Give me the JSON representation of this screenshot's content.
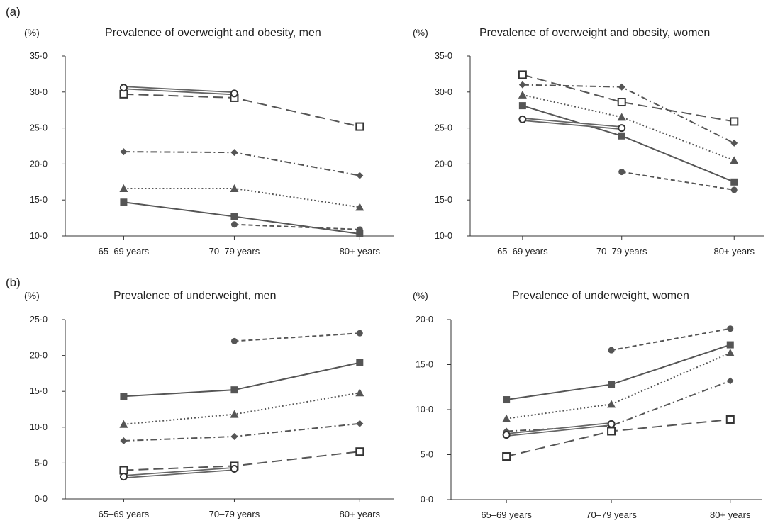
{
  "panel_labels": [
    "(a)",
    "(b)"
  ],
  "chart_data": [
    {
      "type": "line",
      "title": "Prevalence of overweight and obesity, men",
      "ylabel": "(%)",
      "categories": [
        "65–69 years",
        "70–79 years",
        "80+ years"
      ],
      "ylim": [
        10,
        35
      ],
      "yticks": [
        "10·0",
        "15·0",
        "20·0",
        "25·0",
        "30·0",
        "35·0"
      ],
      "series": [
        {
          "marker": "square-filled",
          "dash": "solid",
          "values": [
            14.7,
            12.7,
            10.3
          ]
        },
        {
          "marker": "triangle",
          "dash": "dotted",
          "values": [
            16.6,
            16.6,
            14.0
          ]
        },
        {
          "marker": "diamond",
          "dash": "dashdot",
          "values": [
            21.7,
            21.6,
            18.4
          ]
        },
        {
          "marker": "square-open",
          "dash": "longdash",
          "values": [
            29.7,
            29.2,
            25.2
          ]
        },
        {
          "marker": "circle-open",
          "dash": "double",
          "values": [
            30.6,
            29.8,
            null
          ]
        },
        {
          "marker": "circle-filled",
          "dash": "shortdash",
          "values": [
            null,
            11.6,
            10.9
          ]
        }
      ]
    },
    {
      "type": "line",
      "title": "Prevalence of overweight and obesity, women",
      "ylabel": "(%)",
      "categories": [
        "65–69 years",
        "70–79 years",
        "80+ years"
      ],
      "ylim": [
        10,
        35
      ],
      "yticks": [
        "10·0",
        "15·0",
        "20·0",
        "25·0",
        "30·0",
        "35·0"
      ],
      "series": [
        {
          "marker": "square-filled",
          "dash": "solid",
          "values": [
            28.1,
            23.9,
            17.5
          ]
        },
        {
          "marker": "triangle",
          "dash": "dotted",
          "values": [
            29.6,
            26.5,
            20.5
          ]
        },
        {
          "marker": "diamond",
          "dash": "dashdot",
          "values": [
            31.0,
            30.7,
            22.9
          ]
        },
        {
          "marker": "square-open",
          "dash": "longdash",
          "values": [
            32.4,
            28.6,
            25.9
          ]
        },
        {
          "marker": "circle-open",
          "dash": "double",
          "values": [
            26.2,
            25.0,
            null
          ]
        },
        {
          "marker": "circle-filled",
          "dash": "shortdash",
          "values": [
            null,
            18.9,
            16.4
          ]
        }
      ]
    },
    {
      "type": "line",
      "title": "Prevalence of underweight, men",
      "ylabel": "(%)",
      "categories": [
        "65–69 years",
        "70–79 years",
        "80+ years"
      ],
      "ylim": [
        0,
        25
      ],
      "yticks": [
        "0·0",
        "5·0",
        "10·0",
        "15·0",
        "20·0",
        "25·0"
      ],
      "series": [
        {
          "marker": "square-filled",
          "dash": "solid",
          "values": [
            14.3,
            15.2,
            19.0
          ]
        },
        {
          "marker": "triangle",
          "dash": "dotted",
          "values": [
            10.4,
            11.8,
            14.8
          ]
        },
        {
          "marker": "diamond",
          "dash": "dashdot",
          "values": [
            8.1,
            8.7,
            10.5
          ]
        },
        {
          "marker": "square-open",
          "dash": "longdash",
          "values": [
            4.0,
            4.6,
            6.6
          ]
        },
        {
          "marker": "circle-open",
          "dash": "double",
          "values": [
            3.1,
            4.2,
            null
          ]
        },
        {
          "marker": "circle-filled",
          "dash": "shortdash",
          "values": [
            null,
            22.0,
            23.1
          ]
        }
      ]
    },
    {
      "type": "line",
      "title": "Prevalence of underweight, women",
      "ylabel": "(%)",
      "categories": [
        "65–69 years",
        "70–79 years",
        "80+ years"
      ],
      "ylim": [
        0,
        20
      ],
      "yticks": [
        "0·0",
        "5·0",
        "10·0",
        "15·0",
        "20·0"
      ],
      "series": [
        {
          "marker": "square-filled",
          "dash": "solid",
          "values": [
            11.1,
            12.8,
            17.2
          ]
        },
        {
          "marker": "triangle",
          "dash": "dotted",
          "values": [
            9.0,
            10.6,
            16.3
          ]
        },
        {
          "marker": "diamond",
          "dash": "dashdot",
          "values": [
            7.6,
            8.2,
            13.2
          ]
        },
        {
          "marker": "square-open",
          "dash": "longdash",
          "values": [
            4.8,
            7.6,
            8.9
          ]
        },
        {
          "marker": "circle-open",
          "dash": "double",
          "values": [
            7.2,
            8.4,
            null
          ]
        },
        {
          "marker": "circle-filled",
          "dash": "shortdash",
          "values": [
            null,
            16.6,
            19.0
          ]
        }
      ]
    }
  ]
}
